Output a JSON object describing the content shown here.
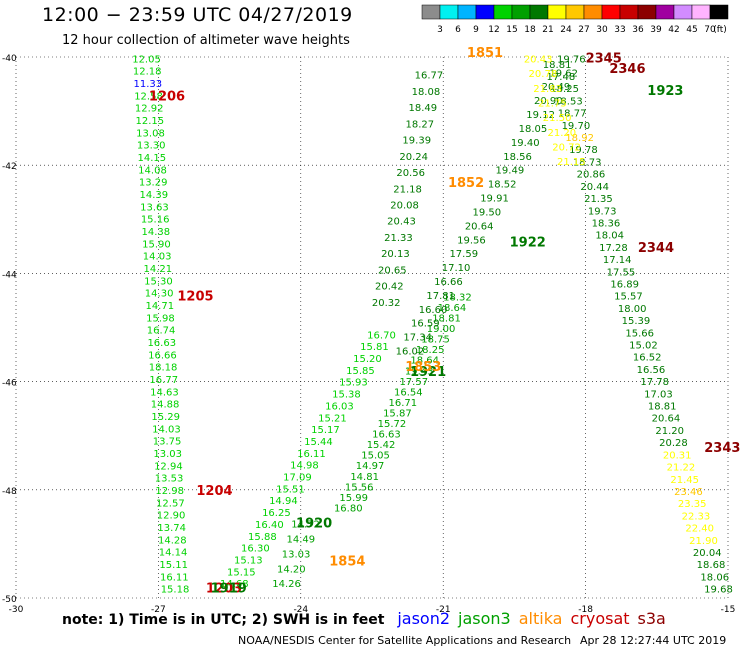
{
  "header": {
    "title": "12:00 − 23:59 UTC 04/27/2019",
    "subtitle": "12 hour collection of altimeter wave heights"
  },
  "colorbar": {
    "unit": "(ft)",
    "labels": [
      "3",
      "6",
      "9",
      "12",
      "15",
      "18",
      "21",
      "24",
      "27",
      "30",
      "33",
      "36",
      "39",
      "42",
      "45",
      "70"
    ],
    "colors": [
      "#8c8c8c",
      "#00f0f0",
      "#00b4ff",
      "#0000ff",
      "#00d200",
      "#00a000",
      "#007800",
      "#ffff00",
      "#ffc800",
      "#ff8c00",
      "#ff0000",
      "#c80000",
      "#8c0000",
      "#a000a0",
      "#d28cff",
      "#ffb4ff",
      "#000000"
    ]
  },
  "map": {
    "lat_min": -50,
    "lat_max": -40,
    "lon_min": -30,
    "lon_max": -15,
    "lat_ticks": [
      "-40",
      "-42",
      "-44",
      "-46",
      "-48",
      "-50"
    ],
    "lon_ticks": [
      "-30",
      "-27",
      "-24",
      "-21",
      "-18",
      "-15"
    ],
    "track_labels": [
      {
        "text": "1206",
        "lon": -27.2,
        "lat": -40.8,
        "color": "#c80000"
      },
      {
        "text": "1205",
        "lon": -26.6,
        "lat": -44.5,
        "color": "#c80000"
      },
      {
        "text": "1204",
        "lon": -26.2,
        "lat": -48.1,
        "color": "#c80000"
      },
      {
        "text": "1203",
        "lon": -26.0,
        "lat": -49.9,
        "color": "#c80000"
      },
      {
        "text": "1919",
        "lon": -25.9,
        "lat": -49.9,
        "color": "#007800"
      },
      {
        "text": "1920",
        "lon": -24.1,
        "lat": -48.7,
        "color": "#007800"
      },
      {
        "text": "1921",
        "lon": -21.7,
        "lat": -45.9,
        "color": "#007800"
      },
      {
        "text": "1922",
        "lon": -19.6,
        "lat": -43.5,
        "color": "#007800"
      },
      {
        "text": "1923",
        "lon": -16.7,
        "lat": -40.7,
        "color": "#007800"
      },
      {
        "text": "1851",
        "lon": -20.5,
        "lat": -40.0,
        "color": "#ff8c00"
      },
      {
        "text": "1852",
        "lon": -20.9,
        "lat": -42.4,
        "color": "#ff8c00"
      },
      {
        "text": "1853",
        "lon": -21.8,
        "lat": -45.8,
        "color": "#ff8c00"
      },
      {
        "text": "1854",
        "lon": -23.4,
        "lat": -49.4,
        "color": "#ff8c00"
      },
      {
        "text": "2345",
        "lon": -18.0,
        "lat": -40.1,
        "color": "#8c0000"
      },
      {
        "text": "2346",
        "lon": -17.5,
        "lat": -40.3,
        "color": "#8c0000"
      },
      {
        "text": "2344",
        "lon": -16.9,
        "lat": -43.6,
        "color": "#8c0000"
      },
      {
        "text": "2343",
        "lon": -15.5,
        "lat": -47.3,
        "color": "#8c0000"
      }
    ],
    "tracks": [
      {
        "color": "#00d200",
        "start": [
          -27.25,
          -40.1
        ],
        "end": [
          -26.65,
          -49.9
        ],
        "values": [
          "12.05",
          "12.18",
          "11.33",
          "12.58",
          "12.92",
          "12.15",
          "13.08",
          "13.30",
          "14.15",
          "14.08",
          "13.29",
          "14.39",
          "13.63",
          "15.16",
          "14.38",
          "15.90",
          "14.03",
          "14.21",
          "15.30",
          "14.30",
          "14.71",
          "15.98",
          "16.74",
          "16.63",
          "16.66",
          "18.18",
          "16.77",
          "14.63",
          "14.88",
          "15.29",
          "14.03",
          "13.75",
          "13.03",
          "12.94",
          "13.53",
          "12.98",
          "12.57",
          "12.90",
          "13.74",
          "14.28",
          "14.14",
          "15.11",
          "16.11",
          "15.18"
        ],
        "special": {
          "2": "#0000ff"
        }
      },
      {
        "color": "#00d200",
        "start": [
          -25.4,
          -49.8
        ],
        "end": [
          -22.3,
          -45.2
        ],
        "values": [
          "14.68",
          "15.15",
          "15.13",
          "16.30",
          "15.88",
          "16.40",
          "16.25",
          "14.94",
          "15.51",
          "17.09",
          "14.98",
          "16.11",
          "15.44",
          "15.17",
          "15.21",
          "16.03",
          "15.38",
          "15.93",
          "15.85",
          "15.20",
          "15.81",
          "16.70"
        ]
      },
      {
        "color": "#00a000",
        "start": [
          -23.0,
          -48.4
        ],
        "end": [
          -20.7,
          -44.5
        ],
        "values": [
          "16.80",
          "15.99",
          "15.56",
          "14.81",
          "14.97",
          "15.05",
          "15.42",
          "16.63",
          "15.72",
          "15.87",
          "16.71",
          "16.54",
          "17.57",
          "19.43",
          "18.64",
          "18.25",
          "18.75",
          "19.00",
          "18.81",
          "18.64",
          "18.32"
        ]
      },
      {
        "color": "#007800",
        "start": [
          -22.2,
          -44.6
        ],
        "end": [
          -21.3,
          -40.4
        ],
        "values": [
          "20.32",
          "20.42",
          "20.65",
          "20.13",
          "21.33",
          "20.43",
          "20.08",
          "21.18",
          "20.56",
          "20.24",
          "19.39",
          "18.27",
          "18.49",
          "18.08",
          "16.77"
        ]
      },
      {
        "color": "#007800",
        "start": [
          -21.7,
          -45.5
        ],
        "end": [
          -18.3,
          -40.1
        ],
        "values": [
          "16.02",
          "17.34",
          "16.59",
          "16.60",
          "17.81",
          "16.66",
          "17.10",
          "17.59",
          "19.56",
          "20.64",
          "19.50",
          "19.91",
          "18.52",
          "19.49",
          "18.56",
          "19.40",
          "18.05",
          "19.12",
          "20.90",
          "20.49",
          "19.62",
          "19.76"
        ]
      },
      {
        "color": "#007800",
        "start": [
          -18.6,
          -40.2
        ],
        "end": [
          -15.2,
          -49.9
        ],
        "values": [
          "18.81",
          "17.48",
          "18.25",
          "18.53",
          "18.77",
          "19.70",
          "18.92",
          "19.78",
          "18.73",
          "20.86",
          "20.44",
          "21.35",
          "19.73",
          "18.36",
          "18.04",
          "17.28",
          "17.14",
          "17.55",
          "16.89",
          "15.57",
          "18.00",
          "15.39",
          "15.66",
          "15.02",
          "16.52",
          "16.56",
          "17.78",
          "17.03",
          "18.81",
          "20.64",
          "21.20",
          "20.28",
          "20.31",
          "21.22",
          "21.45",
          "23.46",
          "23.35",
          "22.33",
          "22.40",
          "21.90",
          "20.04",
          "18.68",
          "18.06",
          "19.68"
        ],
        "special": {
          "6": "#ffc800",
          "32": "#ffff00",
          "33": "#ffff00",
          "34": "#ffff00",
          "35": "#ffc800",
          "36": "#ffff00",
          "37": "#ffff00",
          "38": "#ffff00",
          "39": "#ffff00"
        }
      },
      {
        "color": "#ffff00",
        "start": [
          -19.0,
          -40.1
        ],
        "end": [
          -18.3,
          -42.0
        ],
        "values": [
          "20.43",
          "20.78",
          "21.83",
          "21.75",
          "21.50",
          "21.20",
          "20.72",
          "21.15"
        ]
      },
      {
        "color": "#00a000",
        "start": [
          -24.3,
          -49.8
        ],
        "end": [
          -23.9,
          -48.7
        ],
        "values": [
          "14.26",
          "14.20",
          "13.03",
          "14.49",
          "14.72"
        ]
      }
    ]
  },
  "legend": {
    "note": "note: 1) Time is in UTC; 2) SWH is in feet",
    "items": [
      {
        "name": "jason2",
        "color": "#0000ff"
      },
      {
        "name": "jason3",
        "color": "#00a000"
      },
      {
        "name": "altika",
        "color": "#ff8c00"
      },
      {
        "name": "cryosat",
        "color": "#c80000"
      },
      {
        "name": "s3a",
        "color": "#8c0000"
      }
    ]
  },
  "footer": {
    "credit": "NOAA/NESDIS Center for Satellite Applications and Research",
    "timestamp": "Apr 28 12:27:44 UTC 2019"
  }
}
